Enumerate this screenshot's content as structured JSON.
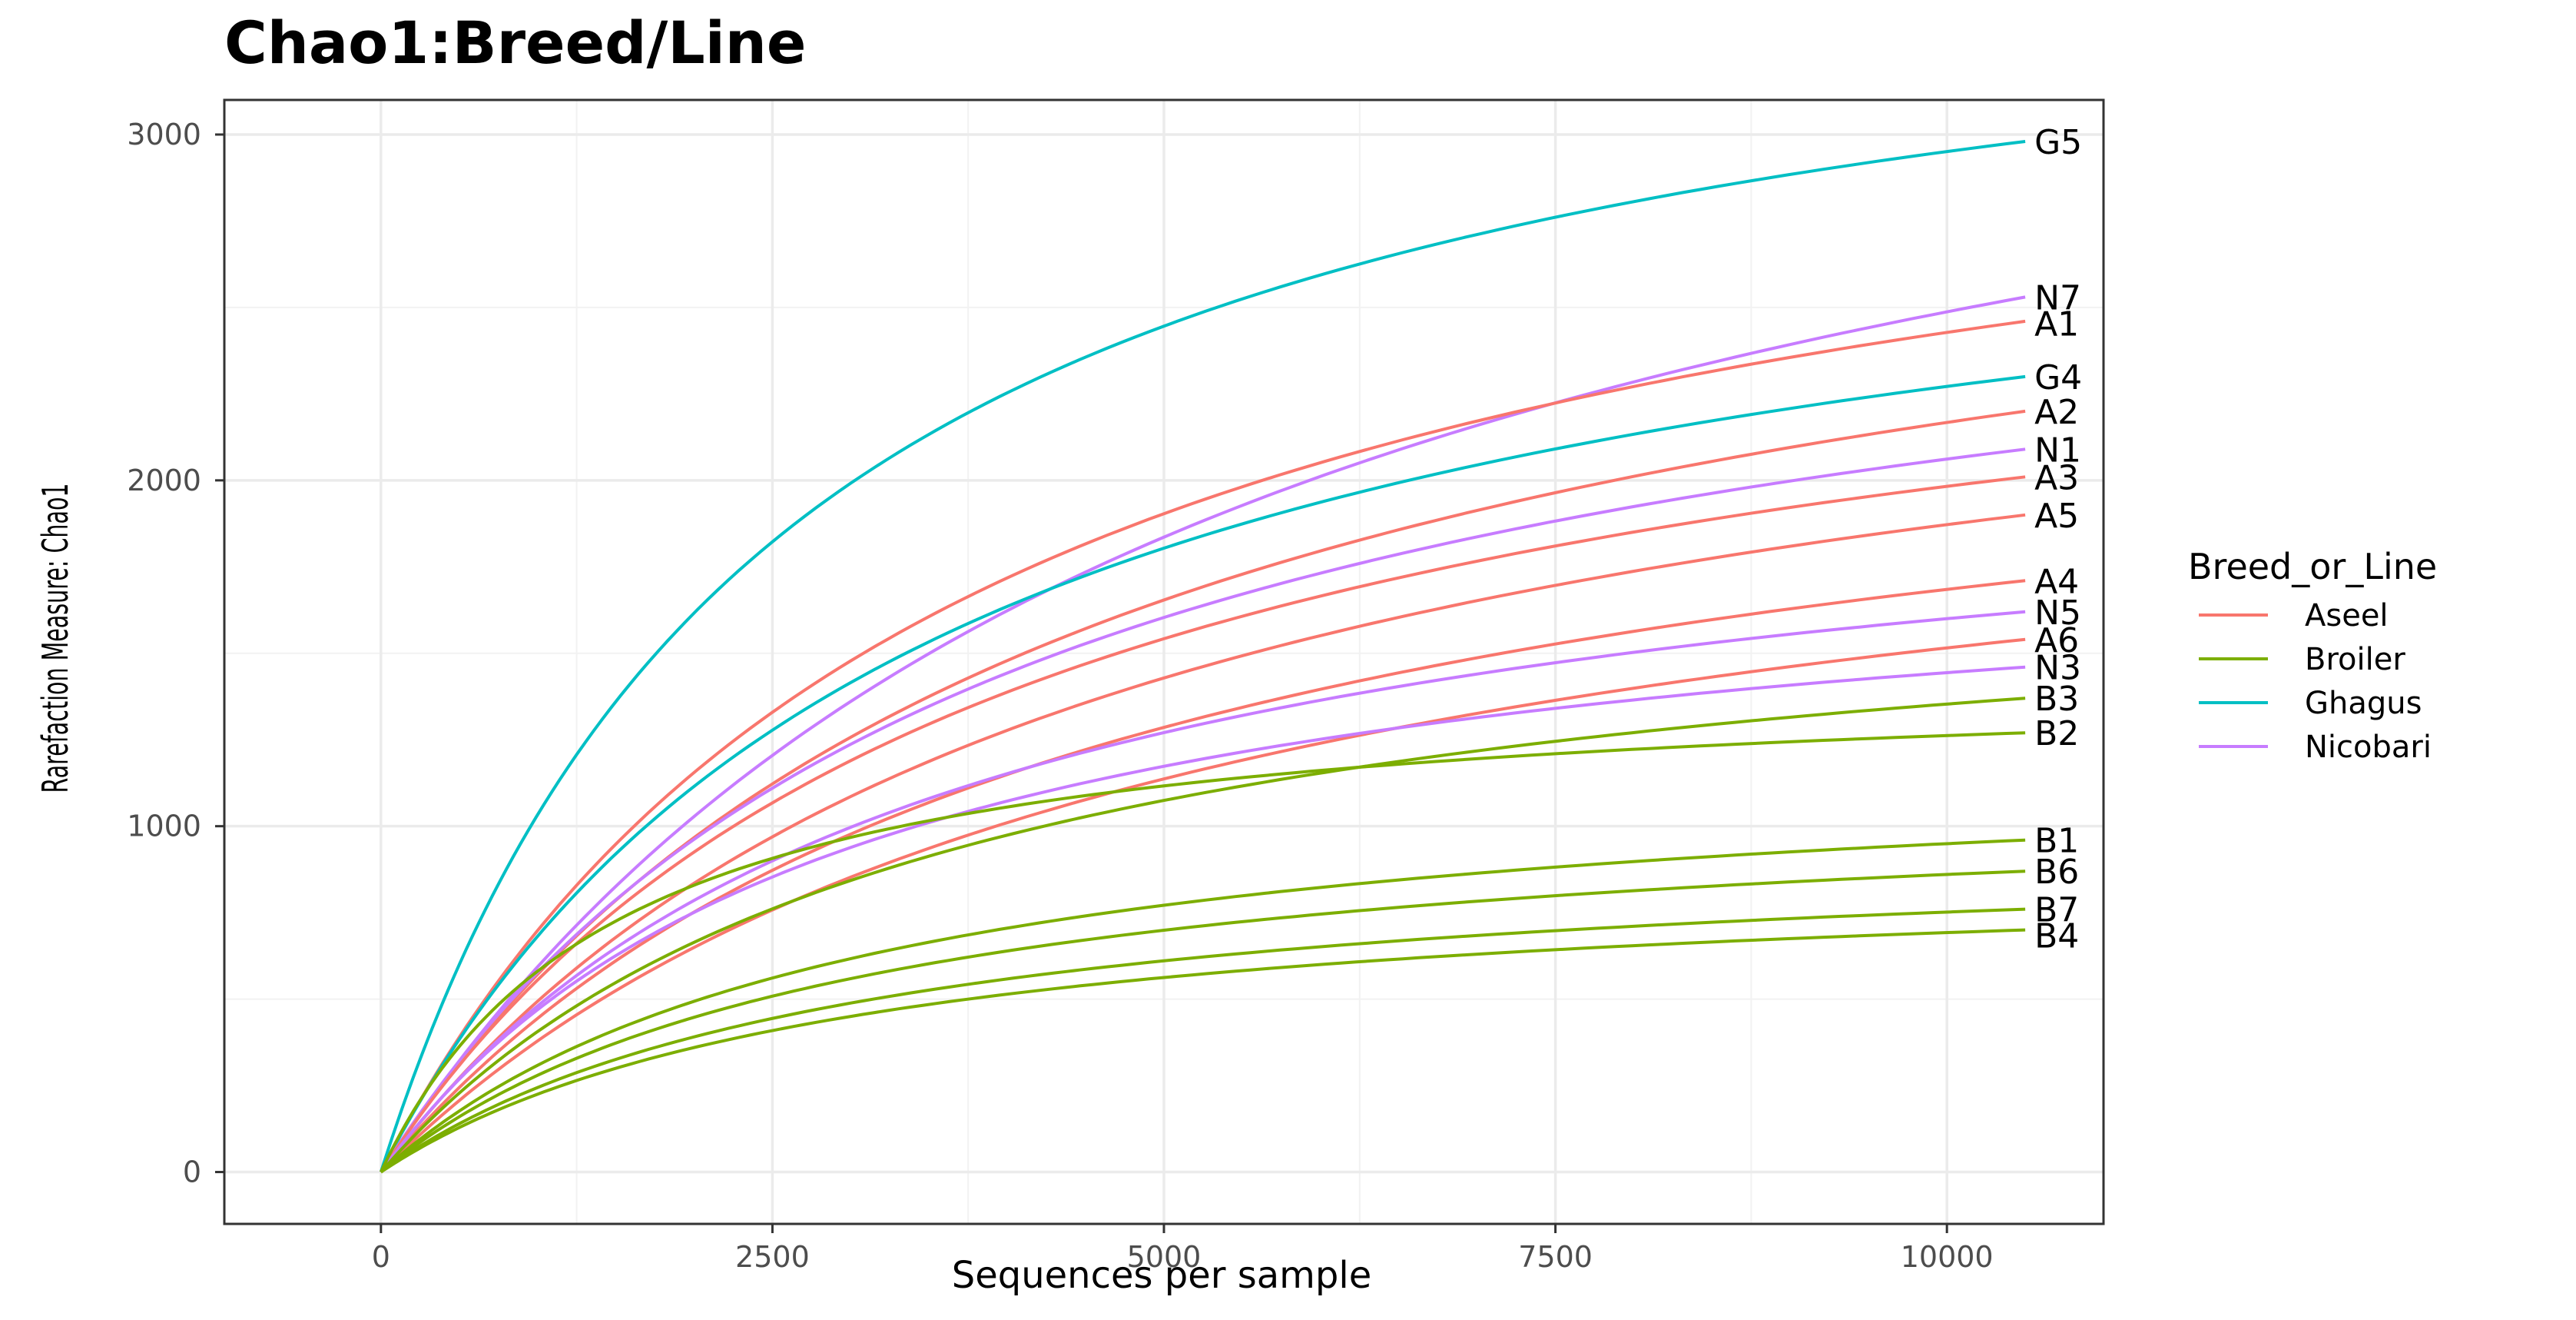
{
  "chart_data": {
    "type": "line",
    "title": "Chao1:Breed/Line",
    "xlabel": "Sequences per sample",
    "ylabel": "Rarefaction Measure: Chao1",
    "xlim": [
      -1000,
      11000
    ],
    "ylim": [
      -150,
      3100
    ],
    "xticks": [
      0,
      2500,
      5000,
      7500,
      10000
    ],
    "yticks": [
      0,
      1000,
      2000,
      3000
    ],
    "grid": true,
    "legend": {
      "title": "Breed_or_Line",
      "position": "right",
      "entries": [
        {
          "name": "Aseel",
          "color": "#F8766D"
        },
        {
          "name": "Broiler",
          "color": "#7CAE00"
        },
        {
          "name": "Ghagus",
          "color": "#00BFC4"
        },
        {
          "name": "Nicobari",
          "color": "#C77CFF"
        }
      ]
    },
    "series": [
      {
        "label": "G5",
        "group": "Ghagus",
        "end": 2980,
        "k": 2600
      },
      {
        "label": "N7",
        "group": "Nicobari",
        "end": 2530,
        "k": 5500
      },
      {
        "label": "A1",
        "group": "Aseel",
        "end": 2460,
        "k": 3800
      },
      {
        "label": "G4",
        "group": "Ghagus",
        "end": 2300,
        "k": 3500
      },
      {
        "label": "A2",
        "group": "Aseel",
        "end": 2200,
        "k": 4500
      },
      {
        "label": "N1",
        "group": "Nicobari",
        "end": 2090,
        "k": 4000
      },
      {
        "label": "A3",
        "group": "Aseel",
        "end": 2010,
        "k": 4000
      },
      {
        "label": "A5",
        "group": "Aseel",
        "end": 1900,
        "k": 4500
      },
      {
        "label": "A4",
        "group": "Aseel",
        "end": 1710,
        "k": 4500
      },
      {
        "label": "N5",
        "group": "Nicobari",
        "end": 1620,
        "k": 3500
      },
      {
        "label": "A6",
        "group": "Aseel",
        "end": 1540,
        "k": 5000
      },
      {
        "label": "N3",
        "group": "Nicobari",
        "end": 1460,
        "k": 3000
      },
      {
        "label": "B3",
        "group": "Broiler",
        "end": 1370,
        "k": 3500
      },
      {
        "label": "B2",
        "group": "Broiler",
        "end": 1270,
        "k": 1500
      },
      {
        "label": "B1",
        "group": "Broiler",
        "end": 960,
        "k": 3000
      },
      {
        "label": "B6",
        "group": "Broiler",
        "end": 870,
        "k": 3000
      },
      {
        "label": "B7",
        "group": "Broiler",
        "end": 760,
        "k": 3000
      },
      {
        "label": "B4",
        "group": "Broiler",
        "end": 700,
        "k": 3000
      }
    ]
  }
}
